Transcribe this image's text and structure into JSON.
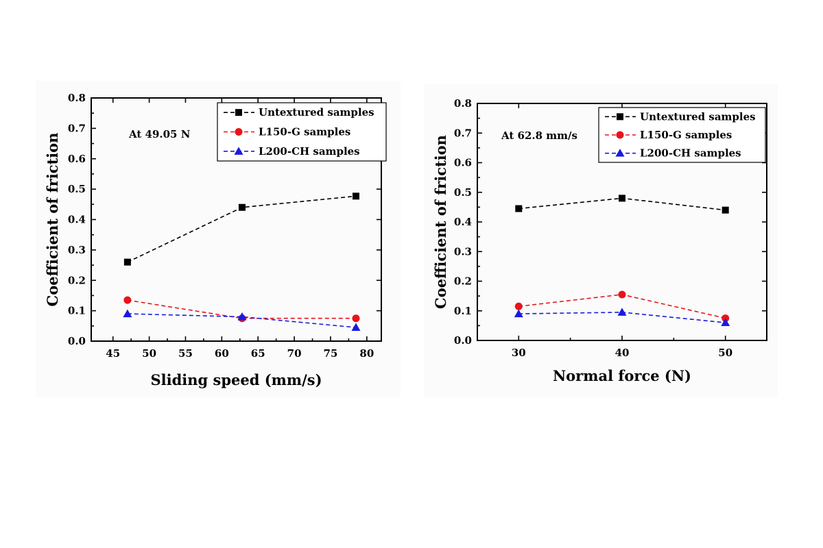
{
  "chart_data": [
    {
      "type": "line",
      "xlabel": "Sliding speed (mm/s)",
      "ylabel": "Coefficient of friction",
      "annotation": "At 49.05 N",
      "xlim": [
        42,
        82
      ],
      "ylim": [
        0.0,
        0.8
      ],
      "xticks": [
        45,
        50,
        55,
        60,
        65,
        70,
        75,
        80
      ],
      "yticks": [
        0.0,
        0.1,
        0.2,
        0.3,
        0.4,
        0.5,
        0.6,
        0.7,
        0.8
      ],
      "legend_position": "top-right",
      "grid": false,
      "x": [
        47,
        62.8,
        78.5
      ],
      "series": [
        {
          "name": "Untextured samples",
          "color": "#000000",
          "marker": "square",
          "values": [
            0.26,
            0.44,
            0.477
          ]
        },
        {
          "name": "L150-G samples",
          "color": "#e8141a",
          "marker": "circle",
          "values": [
            0.135,
            0.075,
            0.075
          ]
        },
        {
          "name": "L200-CH samples",
          "color": "#1a1ae0",
          "marker": "triangle",
          "values": [
            0.09,
            0.08,
            0.045
          ]
        }
      ]
    },
    {
      "type": "line",
      "xlabel": "Normal force (N)",
      "ylabel": "Coefficient of friction",
      "annotation": "At 62.8 mm/s",
      "xlim": [
        26,
        54
      ],
      "ylim": [
        0.0,
        0.8
      ],
      "xticks": [
        30,
        40,
        50
      ],
      "yticks": [
        0.0,
        0.1,
        0.2,
        0.3,
        0.4,
        0.5,
        0.6,
        0.7,
        0.8
      ],
      "legend_position": "top-right",
      "grid": false,
      "x": [
        30,
        40,
        50
      ],
      "series": [
        {
          "name": "Untextured samples",
          "color": "#000000",
          "marker": "square",
          "values": [
            0.445,
            0.48,
            0.44
          ]
        },
        {
          "name": "L150-G samples",
          "color": "#e8141a",
          "marker": "circle",
          "values": [
            0.115,
            0.155,
            0.075
          ]
        },
        {
          "name": "L200-CH samples",
          "color": "#1a1ae0",
          "marker": "triangle",
          "values": [
            0.09,
            0.095,
            0.06
          ]
        }
      ]
    }
  ]
}
